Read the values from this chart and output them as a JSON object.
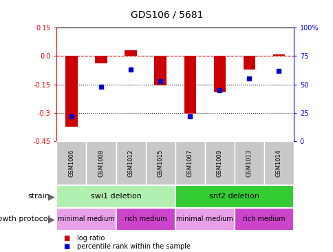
{
  "title": "GDS106 / 5681",
  "samples": [
    "GSM1006",
    "GSM1008",
    "GSM1012",
    "GSM1015",
    "GSM1007",
    "GSM1009",
    "GSM1013",
    "GSM1014"
  ],
  "log_ratio": [
    -0.375,
    -0.04,
    0.03,
    -0.155,
    -0.305,
    -0.19,
    -0.07,
    0.01
  ],
  "percentile": [
    22,
    48,
    63,
    53,
    22,
    45,
    55,
    62
  ],
  "ylim_left": [
    -0.45,
    0.15
  ],
  "ylim_right": [
    0,
    100
  ],
  "yticks_left": [
    0.15,
    0.0,
    -0.15,
    -0.3,
    -0.45
  ],
  "yticks_right": [
    100,
    75,
    50,
    25,
    0
  ],
  "hlines": [
    -0.15,
    -0.3
  ],
  "strain_groups": [
    {
      "label": "swi1 deletion",
      "start": 0,
      "end": 4,
      "color": "#b2f0b2"
    },
    {
      "label": "snf2 deletion",
      "start": 4,
      "end": 8,
      "color": "#33cc33"
    }
  ],
  "protocol_groups": [
    {
      "label": "minimal medium",
      "start": 0,
      "end": 2,
      "color": "#e8a0e8"
    },
    {
      "label": "rich medium",
      "start": 2,
      "end": 4,
      "color": "#cc44cc"
    },
    {
      "label": "minimal medium",
      "start": 4,
      "end": 6,
      "color": "#e8a0e8"
    },
    {
      "label": "rich medium",
      "start": 6,
      "end": 8,
      "color": "#cc44cc"
    }
  ],
  "bar_color": "#CC0000",
  "dot_color": "#0000CC",
  "dashed_line_color": "#CC0000",
  "dotted_line_color": "#000000",
  "background_color": "#ffffff",
  "tick_label_bg": "#c8c8c8",
  "strain_label": "strain",
  "protocol_label": "growth protocol",
  "legend_log": "log ratio",
  "legend_pct": "percentile rank within the sample",
  "bar_width": 0.4
}
